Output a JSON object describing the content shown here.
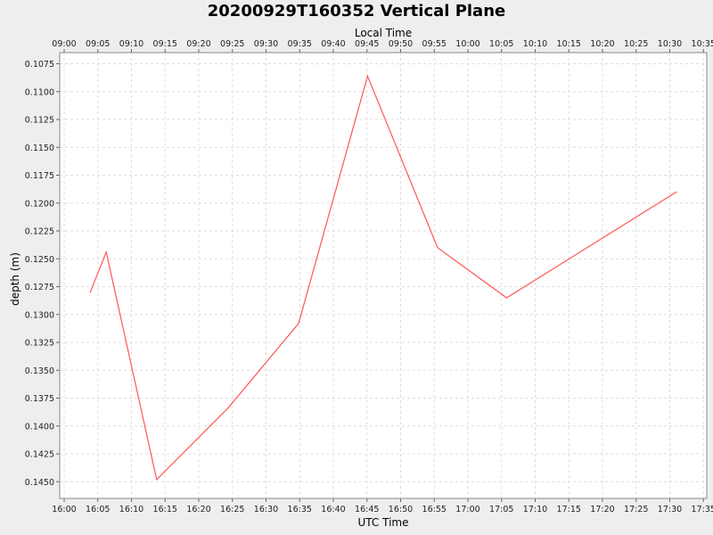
{
  "chart_data": {
    "type": "line",
    "title": "20200929T160352 Vertical Plane",
    "top_axis_label": "Local Time",
    "xlabel": "UTC Time",
    "ylabel": "depth (m)",
    "y_inverted": true,
    "ylim": [
      0.1065,
      0.1465
    ],
    "y_ticks": [
      "0.1075",
      "0.1100",
      "0.1125",
      "0.1150",
      "0.1175",
      "0.1200",
      "0.1225",
      "0.1250",
      "0.1275",
      "0.1300",
      "0.1325",
      "0.1350",
      "0.1375",
      "0.1400",
      "0.1425",
      "0.1450"
    ],
    "x_utc_ticks": [
      "16:00",
      "16:05",
      "16:10",
      "16:15",
      "16:20",
      "16:25",
      "16:30",
      "16:35",
      "16:40",
      "16:45",
      "16:50",
      "16:55",
      "17:00",
      "17:05",
      "17:10",
      "17:15",
      "17:20",
      "17:25",
      "17:30",
      "17:35"
    ],
    "x_local_ticks": [
      "09:00",
      "09:05",
      "09:10",
      "09:15",
      "09:20",
      "09:25",
      "09:30",
      "09:35",
      "09:40",
      "09:45",
      "09:50",
      "09:55",
      "10:00",
      "10:05",
      "10:10",
      "10:15",
      "10:20",
      "10:25",
      "10:30",
      "10:35"
    ],
    "grid": true,
    "line_color": "#ff5555",
    "series": [
      {
        "x": [
          "16:03:52",
          "16:06:15",
          "16:13:45",
          "16:24:20",
          "16:34:50",
          "16:45:05",
          "16:55:30",
          "17:05:45",
          "17:31:00"
        ],
        "y": [
          0.128,
          0.1244,
          0.1448,
          0.1384,
          0.1308,
          0.1086,
          0.124,
          0.1285,
          0.119
        ]
      }
    ]
  }
}
